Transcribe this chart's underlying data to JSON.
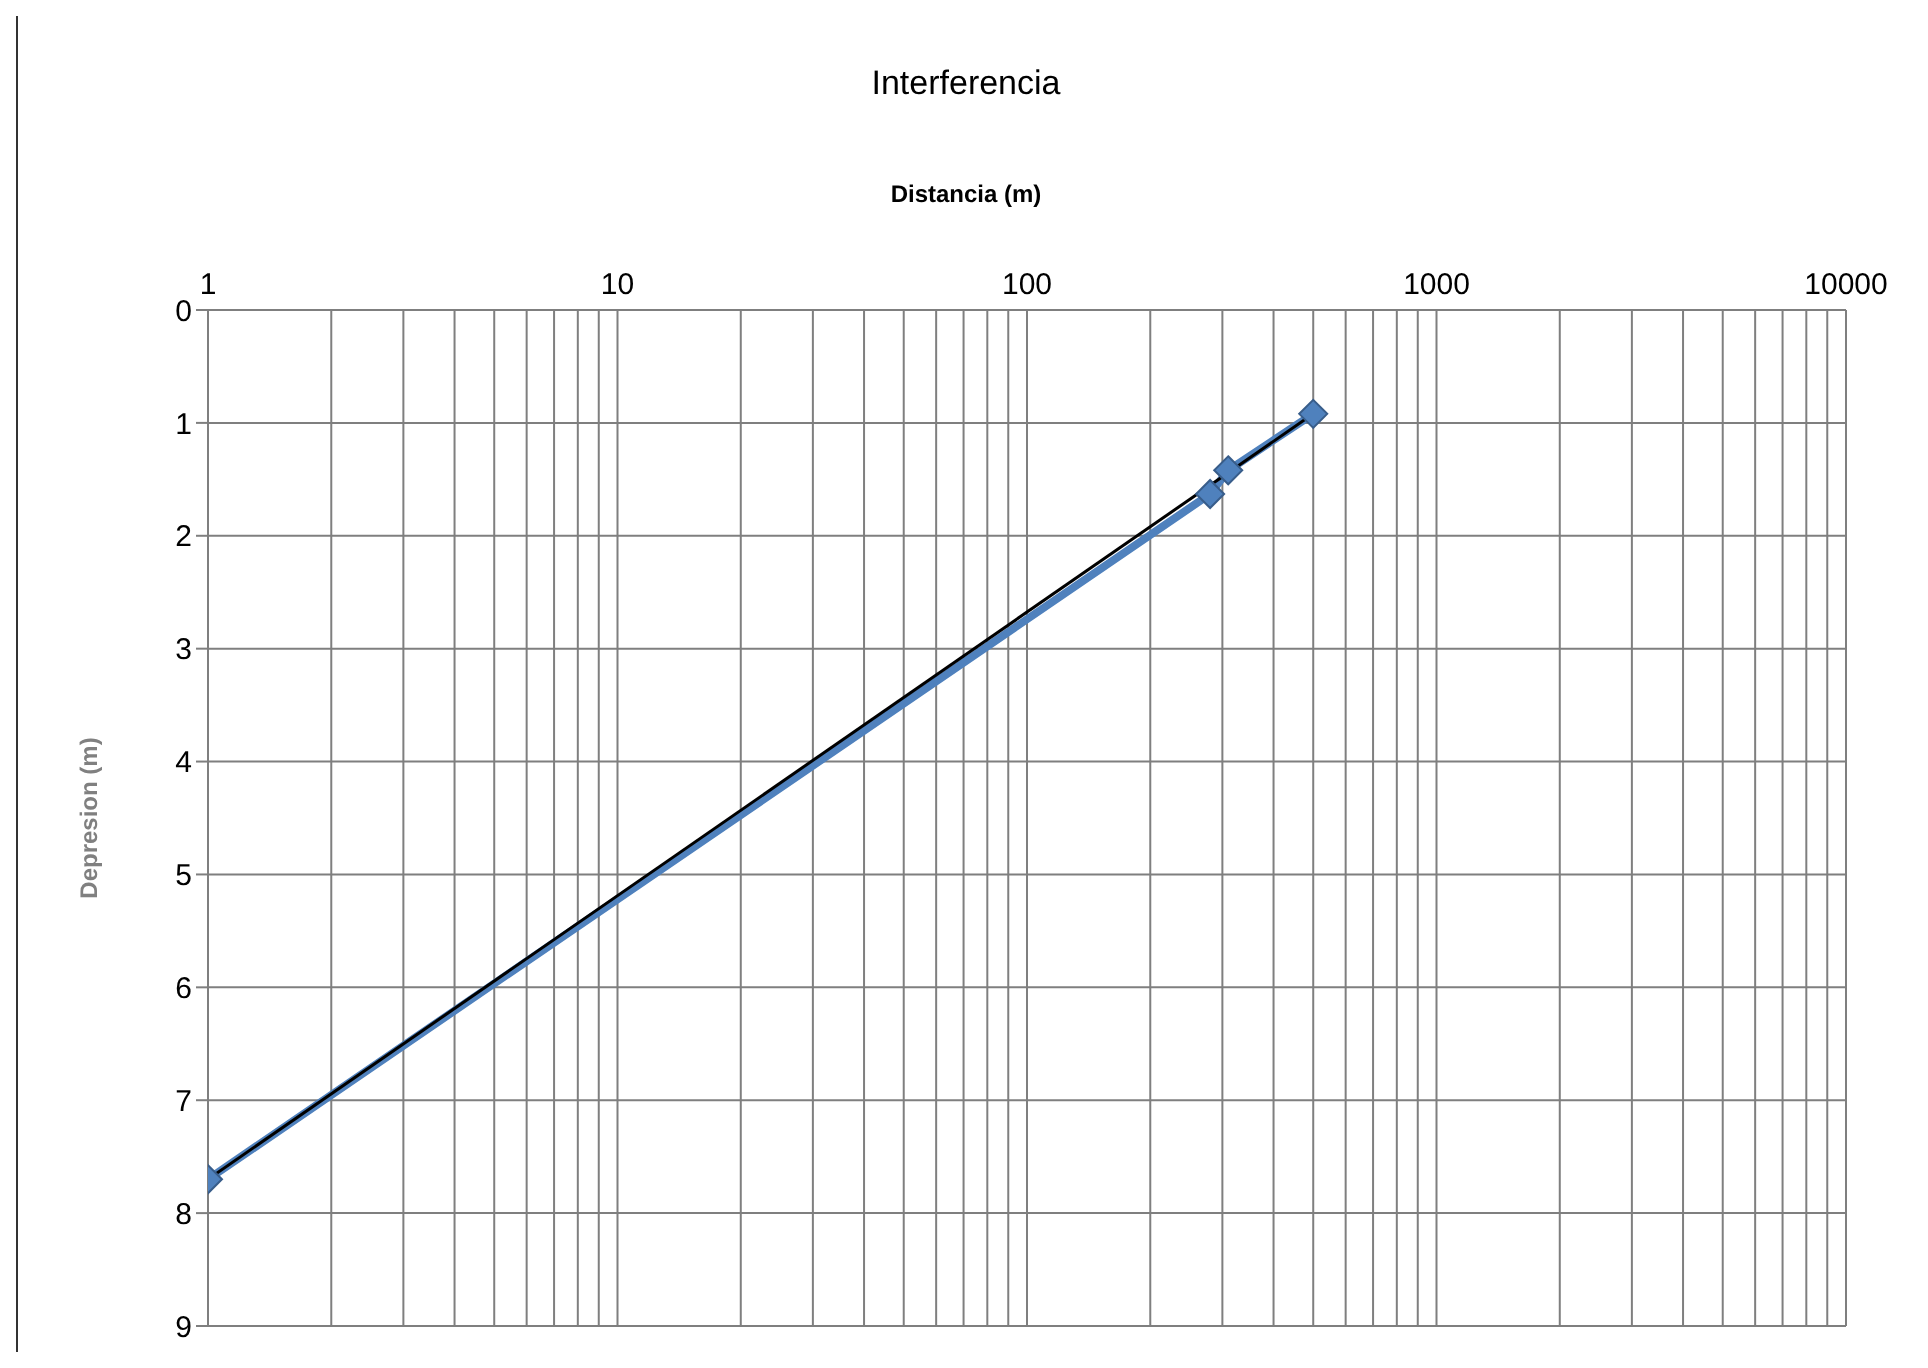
{
  "chart_data": {
    "type": "line",
    "title": "Interferencia",
    "xlabel": "Distancia (m)",
    "ylabel": "Depresion (m)",
    "log": "x",
    "grid": true,
    "marker": "diamond",
    "xlim": [
      1,
      10000
    ],
    "xticks": [
      1,
      {
        "value": 2,
        "label": null
      },
      {
        "value": 3,
        "label": null
      },
      {
        "value": 4,
        "label": null
      },
      {
        "value": 5,
        "label": null
      },
      {
        "value": 6,
        "label": null
      },
      {
        "value": 7,
        "label": null
      },
      {
        "value": 8,
        "label": null
      },
      {
        "value": 9,
        "label": null
      },
      10,
      {
        "value": 20,
        "label": null
      },
      {
        "value": 30,
        "label": null
      },
      {
        "value": 40,
        "label": null
      },
      {
        "value": 50,
        "label": null
      },
      {
        "value": 60,
        "label": null
      },
      {
        "value": 70,
        "label": null
      },
      {
        "value": 80,
        "label": null
      },
      {
        "value": 90,
        "label": null
      },
      100,
      {
        "value": 200,
        "label": null
      },
      {
        "value": 300,
        "label": null
      },
      {
        "value": 400,
        "label": null
      },
      {
        "value": 500,
        "label": null
      },
      {
        "value": 600,
        "label": null
      },
      {
        "value": 700,
        "label": null
      },
      {
        "value": 800,
        "label": null
      },
      {
        "value": 900,
        "label": null
      },
      1000,
      {
        "value": 2000,
        "label": null
      },
      {
        "value": 3000,
        "label": null
      },
      {
        "value": 4000,
        "label": null
      },
      {
        "value": 5000,
        "label": null
      },
      {
        "value": 6000,
        "label": null
      },
      {
        "value": 7000,
        "label": null
      },
      {
        "value": 8000,
        "label": null
      },
      {
        "value": 9000,
        "label": null
      },
      10000
    ],
    "ylim": [
      9,
      0
    ],
    "yticks": [
      0,
      1,
      2,
      3,
      4,
      5,
      6,
      7,
      8,
      9
    ],
    "series": [
      {
        "color": "#4f81bd",
        "x": [
          1,
          280,
          310,
          500
        ],
        "values": [
          7.7,
          1.63,
          1.42,
          0.92
        ]
      },
      {
        "type": "line",
        "marker": "none",
        "color": "#000000",
        "x": [
          1,
          500
        ],
        "values": [
          7.7,
          0.92
        ]
      }
    ]
  }
}
